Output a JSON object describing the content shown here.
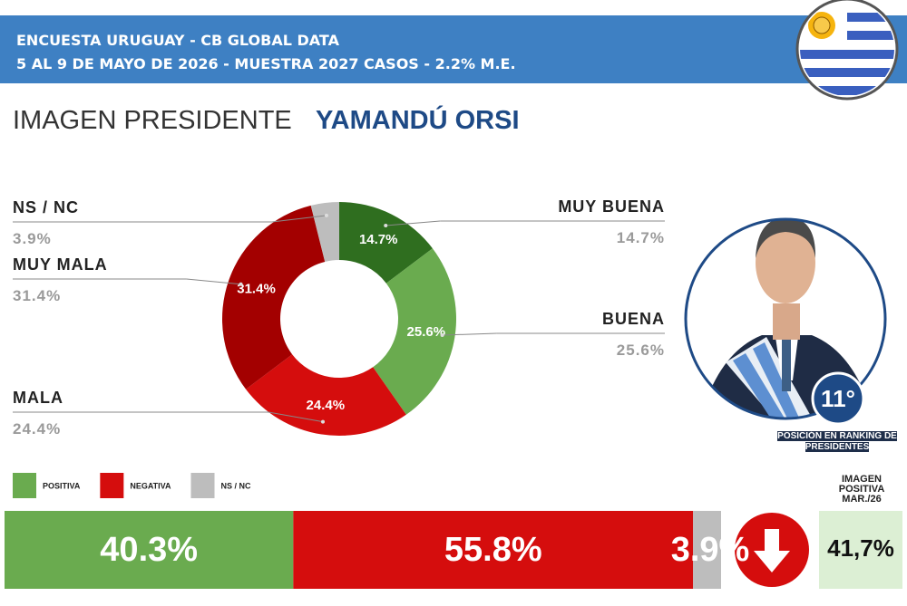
{
  "header": {
    "title": "ENCUESTA URUGUAY - CB GLOBAL DATA",
    "subtitle": "5 AL 9 DE MAYO DE 2026 - MUESTRA 2027 CASOS - 2.2% M.E."
  },
  "heading": {
    "label": "IMAGEN PRESIDENTE",
    "name": "YAMANDÚ ORSI"
  },
  "chart_data": [
    {
      "type": "donut",
      "categories": [
        "MUY BUENA",
        "BUENA",
        "MALA",
        "MUY MALA",
        "NS / NC"
      ],
      "values": [
        14.7,
        25.6,
        24.4,
        31.4,
        3.9
      ],
      "value_labels": [
        "14.7%",
        "25.6%",
        "24.4%",
        "31.4%",
        "3.9%"
      ],
      "colors": [
        "#2f6e1f",
        "#6aab4f",
        "#d50d0d",
        "#a30000",
        "#bdbdbd"
      ]
    },
    {
      "type": "stacked-bar",
      "series": [
        {
          "name": "POSITIVA",
          "color": "#6aab4f",
          "values": [
            40.3
          ],
          "value_labels": [
            "40.3%"
          ]
        },
        {
          "name": "NEGATIVA",
          "color": "#d50d0d",
          "values": [
            55.8
          ],
          "value_labels": [
            "55.8%"
          ]
        },
        {
          "name": "NS / NC",
          "color": "#bdbdbd",
          "values": [
            3.9
          ],
          "value_labels": [
            "3.9%"
          ]
        }
      ]
    }
  ],
  "ranking": {
    "position": "11°",
    "caption": "POSICIÓN EN RANKING DE PRESIDENTES"
  },
  "previous": {
    "label": "IMAGEN POSITIVA MAR./26",
    "value": "41,7%"
  }
}
